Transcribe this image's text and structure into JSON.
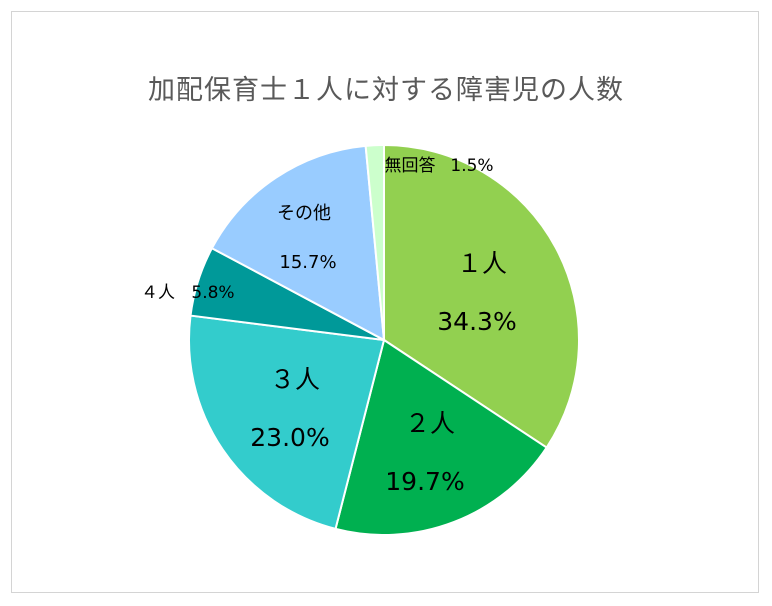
{
  "chart_data": {
    "type": "pie",
    "title": "加配保育士１人に対する障害児の人数",
    "slices": [
      {
        "label": "１人",
        "value": 34.3,
        "pct_label": "34.3%",
        "color": "#92d050"
      },
      {
        "label": "２人",
        "value": 19.7,
        "pct_label": "19.7%",
        "color": "#00b050"
      },
      {
        "label": "３人",
        "value": 23.0,
        "pct_label": "23.0%",
        "color": "#33cccc"
      },
      {
        "label": "４人",
        "value": 5.8,
        "pct_label": "5.8%",
        "color": "#009999"
      },
      {
        "label": "その他",
        "value": 15.7,
        "pct_label": "15.7%",
        "color": "#99ccff"
      },
      {
        "label": "無回答",
        "value": 1.5,
        "pct_label": "1.5%",
        "color": "#ccffcc"
      }
    ]
  }
}
